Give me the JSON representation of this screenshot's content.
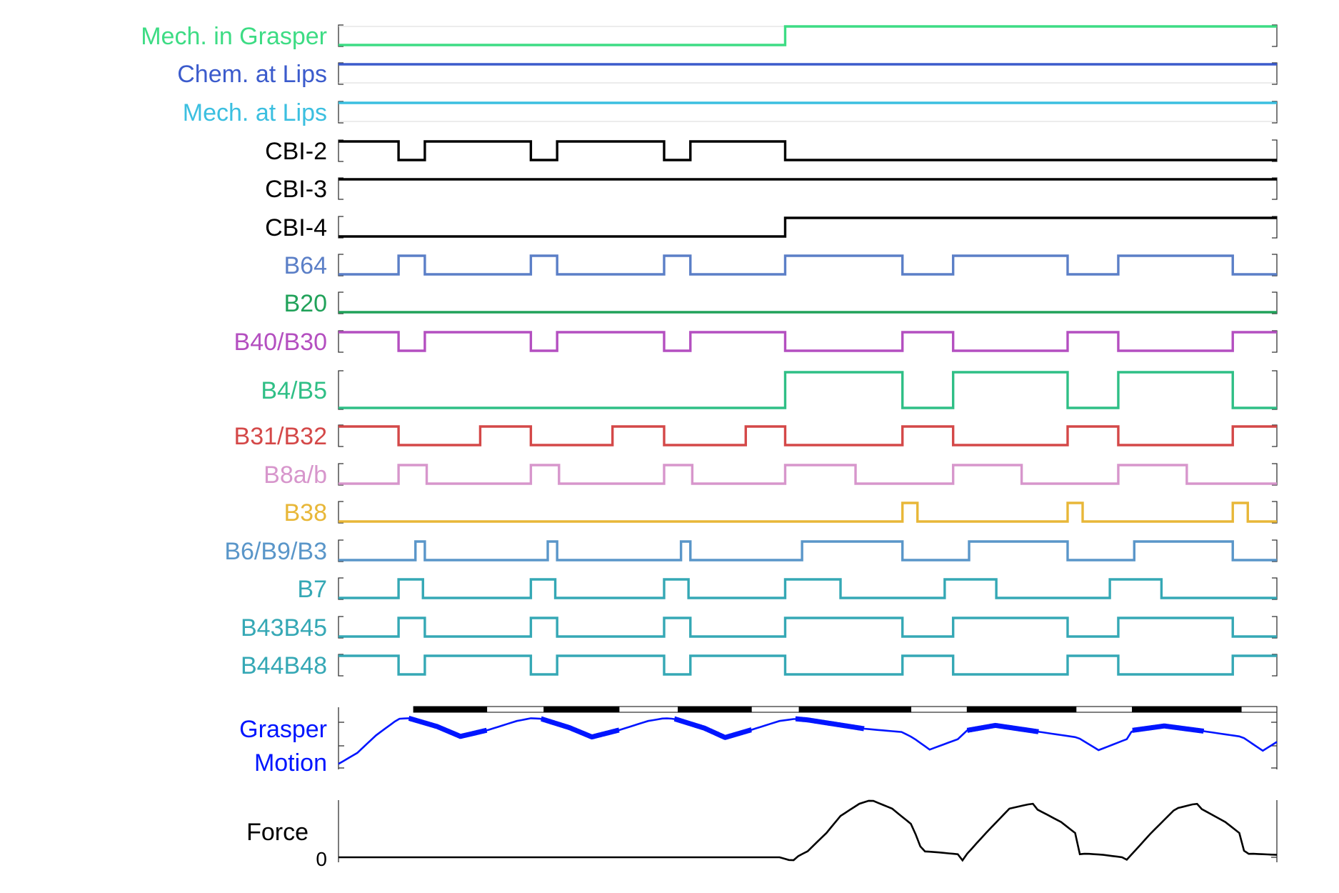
{
  "chart_data": {
    "type": "line",
    "title": "",
    "time_range": [
      0,
      1
    ],
    "colors": {
      "mech_grasper": "#3ddc84",
      "chem_lips": "#3b5bcc",
      "mech_lips": "#3bbfe0",
      "cbi": "#000000",
      "b64": "#5b7fc7",
      "b20": "#21a25a",
      "b40": "#b44fc0",
      "b4": "#2fbf86",
      "b31": "#d44848",
      "b8": "#d796cc",
      "b38": "#e8b738",
      "b6": "#5a96c9",
      "b7": "#35a8b5",
      "grasper": "#0015ff",
      "force": "#000000"
    },
    "neural_traces": [
      {
        "name": "Mech. in Grasper",
        "color": "mech_grasper",
        "thin": true,
        "initial": 0,
        "transitions": [
          0.476
        ]
      },
      {
        "name": "Chem. at Lips",
        "color": "chem_lips",
        "thin": true,
        "initial": 1,
        "transitions": []
      },
      {
        "name": "Mech. at Lips",
        "color": "mech_lips",
        "thin": true,
        "initial": 1,
        "transitions": []
      },
      {
        "name": "CBI-2",
        "color": "cbi",
        "initial": 1,
        "transitions": [
          0.064,
          0.092,
          0.205,
          0.233,
          0.347,
          0.375,
          0.476
        ]
      },
      {
        "name": "CBI-3",
        "color": "cbi",
        "initial": 1,
        "transitions": []
      },
      {
        "name": "CBI-4",
        "color": "cbi",
        "initial": 0,
        "transitions": [
          0.476
        ]
      },
      {
        "name": "B64",
        "color": "b64",
        "initial": 0,
        "transitions": [
          0.064,
          0.092,
          0.205,
          0.233,
          0.347,
          0.375,
          0.476,
          0.601,
          0.655,
          0.777,
          0.831,
          0.953
        ]
      },
      {
        "name": "B20",
        "color": "b20",
        "initial": 0,
        "transitions": []
      },
      {
        "name": "B40/B30",
        "color": "b40",
        "initial": 1,
        "transitions": [
          0.064,
          0.092,
          0.205,
          0.233,
          0.347,
          0.375,
          0.476,
          0.601,
          0.655,
          0.777,
          0.831,
          0.953
        ]
      },
      {
        "name": "B4/B5",
        "color": "b4",
        "initial": 0,
        "tall": true,
        "transitions": [
          0.476,
          0.601,
          0.655,
          0.777,
          0.831,
          0.953
        ]
      },
      {
        "name": "B31/B32",
        "color": "b31",
        "initial": 1,
        "transitions": [
          0.064,
          0.151,
          0.205,
          0.292,
          0.347,
          0.434,
          0.476,
          0.601,
          0.655,
          0.777,
          0.831,
          0.953
        ]
      },
      {
        "name": "B8a/b",
        "color": "b8",
        "initial": 0,
        "transitions": [
          0.064,
          0.094,
          0.205,
          0.235,
          0.347,
          0.377,
          0.476,
          0.551,
          0.655,
          0.728,
          0.831,
          0.904
        ]
      },
      {
        "name": "B38",
        "color": "b38",
        "initial": 0,
        "transitions": [
          0.601,
          0.617,
          0.777,
          0.793,
          0.953,
          0.969
        ]
      },
      {
        "name": "B6/B9/B3",
        "color": "b6",
        "initial": 0,
        "transitions": [
          0.082,
          0.092,
          0.223,
          0.233,
          0.365,
          0.375,
          0.494,
          0.601,
          0.672,
          0.777,
          0.848,
          0.953
        ]
      },
      {
        "name": "B7",
        "color": "b7",
        "initial": 0,
        "transitions": [
          0.064,
          0.09,
          0.205,
          0.231,
          0.347,
          0.373,
          0.476,
          0.535,
          0.646,
          0.701,
          0.822,
          0.877
        ]
      },
      {
        "name": "B43B45",
        "color": "b7",
        "initial": 0,
        "transitions": [
          0.064,
          0.092,
          0.205,
          0.233,
          0.347,
          0.375,
          0.476,
          0.601,
          0.655,
          0.777,
          0.831,
          0.953
        ]
      },
      {
        "name": "B44B48",
        "color": "b7",
        "initial": 1,
        "transitions": [
          0.064,
          0.092,
          0.205,
          0.233,
          0.347,
          0.375,
          0.476,
          0.601,
          0.655,
          0.777,
          0.831,
          0.953
        ]
      }
    ],
    "phase_bar": [
      {
        "start": 0.08,
        "end": 0.158,
        "fill": "black"
      },
      {
        "start": 0.158,
        "end": 0.219,
        "fill": "white"
      },
      {
        "start": 0.219,
        "end": 0.299,
        "fill": "black"
      },
      {
        "start": 0.299,
        "end": 0.362,
        "fill": "white"
      },
      {
        "start": 0.362,
        "end": 0.44,
        "fill": "black"
      },
      {
        "start": 0.44,
        "end": 0.491,
        "fill": "white"
      },
      {
        "start": 0.491,
        "end": 0.61,
        "fill": "black"
      },
      {
        "start": 0.61,
        "end": 0.67,
        "fill": "white"
      },
      {
        "start": 0.67,
        "end": 0.786,
        "fill": "black"
      },
      {
        "start": 0.786,
        "end": 0.846,
        "fill": "white"
      },
      {
        "start": 0.846,
        "end": 0.962,
        "fill": "black"
      },
      {
        "start": 0.962,
        "end": 1.0,
        "fill": "white"
      }
    ],
    "grasper_motion": {
      "label_lines": [
        "Grasper",
        "Motion"
      ],
      "x": [
        0.0,
        0.02,
        0.04,
        0.064,
        0.075,
        0.105,
        0.13,
        0.16,
        0.19,
        0.205,
        0.216,
        0.246,
        0.27,
        0.3,
        0.33,
        0.347,
        0.358,
        0.39,
        0.412,
        0.44,
        0.47,
        0.487,
        0.5,
        0.56,
        0.6,
        0.612,
        0.63,
        0.66,
        0.67,
        0.7,
        0.74,
        0.78,
        0.788,
        0.81,
        0.84,
        0.846,
        0.88,
        0.92,
        0.96,
        0.964,
        0.985,
        1.0
      ],
      "y": [
        0.1,
        0.3,
        0.62,
        0.92,
        0.93,
        0.78,
        0.6,
        0.72,
        0.88,
        0.93,
        0.92,
        0.76,
        0.59,
        0.72,
        0.88,
        0.93,
        0.92,
        0.75,
        0.58,
        0.72,
        0.88,
        0.92,
        0.9,
        0.74,
        0.68,
        0.58,
        0.36,
        0.55,
        0.71,
        0.8,
        0.7,
        0.6,
        0.58,
        0.35,
        0.55,
        0.71,
        0.79,
        0.7,
        0.6,
        0.58,
        0.34,
        0.5
      ],
      "thick_ranges": [
        [
          0.075,
          0.158
        ],
        [
          0.216,
          0.299
        ],
        [
          0.358,
          0.44
        ],
        [
          0.487,
          0.56
        ],
        [
          0.67,
          0.746
        ],
        [
          0.846,
          0.922
        ]
      ]
    },
    "force": {
      "label": "Force",
      "zero_tick": "0",
      "x": [
        0.0,
        0.472,
        0.476,
        0.484,
        0.49,
        0.5,
        0.52,
        0.535,
        0.555,
        0.565,
        0.568,
        0.59,
        0.61,
        0.614,
        0.622,
        0.64,
        0.66,
        0.665,
        0.67,
        0.69,
        0.715,
        0.735,
        0.74,
        0.743,
        0.77,
        0.785,
        0.79,
        0.797,
        0.815,
        0.835,
        0.84,
        0.846,
        0.866,
        0.892,
        0.91,
        0.916,
        0.919,
        0.945,
        0.96,
        0.966,
        0.972,
        1.0
      ],
      "y": [
        0.0,
        0.0,
        -0.03,
        -0.06,
        0.02,
        0.1,
        0.4,
        0.68,
        0.88,
        0.93,
        0.94,
        0.8,
        0.55,
        0.42,
        0.1,
        0.08,
        0.05,
        -0.05,
        0.06,
        0.4,
        0.8,
        0.87,
        0.88,
        0.8,
        0.58,
        0.4,
        0.05,
        0.06,
        0.04,
        0.0,
        -0.04,
        0.06,
        0.4,
        0.8,
        0.87,
        0.88,
        0.8,
        0.58,
        0.4,
        0.05,
        0.06,
        0.04
      ],
      "ylim": [
        -0.1,
        1.0
      ]
    }
  }
}
